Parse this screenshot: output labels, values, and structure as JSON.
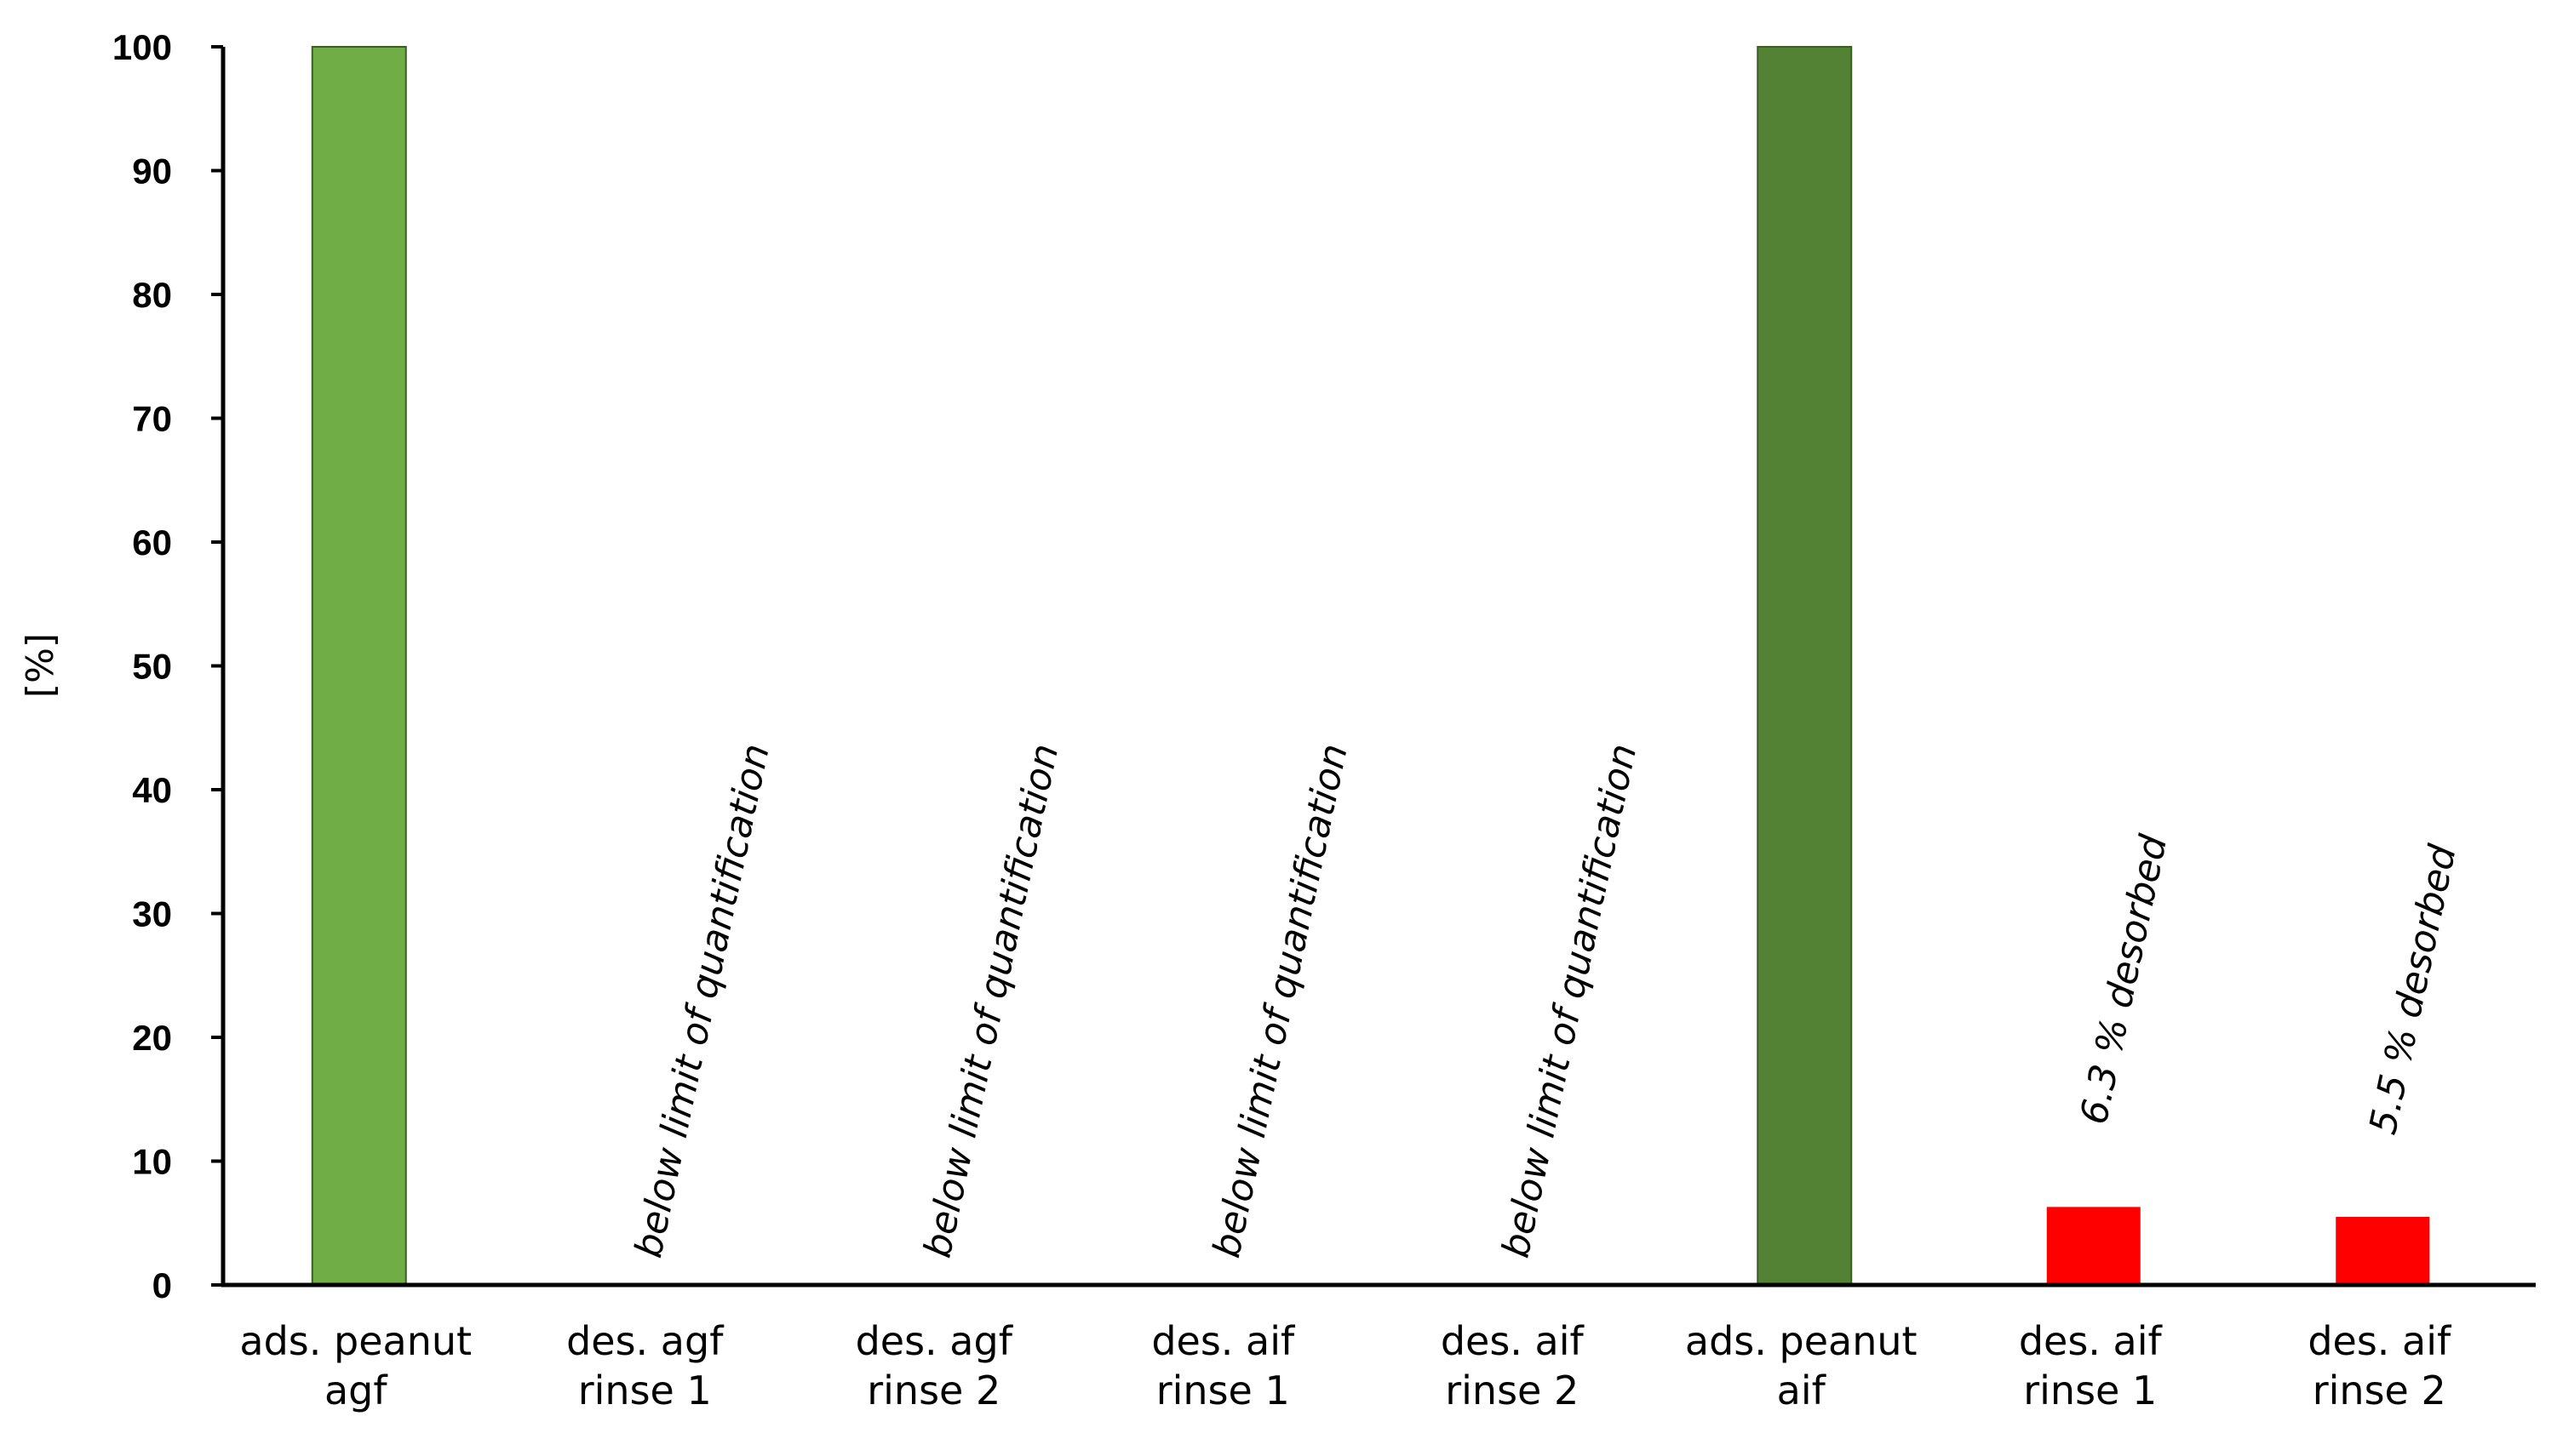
{
  "chart_data": {
    "type": "bar",
    "ylabel": "[%]",
    "xlabel": "",
    "ylim": [
      0,
      100
    ],
    "yticks": [
      0,
      10,
      20,
      30,
      40,
      50,
      60,
      70,
      80,
      90,
      100
    ],
    "grid": false,
    "categories": [
      [
        "ads. peanut",
        "agf"
      ],
      [
        "des. agf",
        "rinse 1"
      ],
      [
        "des. agf",
        "rinse 2"
      ],
      [
        "des. aif",
        "rinse 1"
      ],
      [
        "des. aif",
        "rinse 2"
      ],
      [
        "ads. peanut",
        "aif"
      ],
      [
        "des. aif",
        "rinse 1"
      ],
      [
        "des. aif",
        "rinse 2"
      ]
    ],
    "values": [
      100,
      0,
      0,
      0,
      0,
      100,
      6.3,
      5.5
    ],
    "bar_colors": [
      "#70ad47",
      null,
      null,
      null,
      null,
      "#548235",
      "#ff0000",
      "#ff0000"
    ],
    "annotations": [
      "",
      "below limit of quantification",
      "below limit of quantification",
      "below limit of quantification",
      "below limit of quantification",
      "",
      "6.3 % desorbed",
      "5.5 % desorbed"
    ]
  }
}
